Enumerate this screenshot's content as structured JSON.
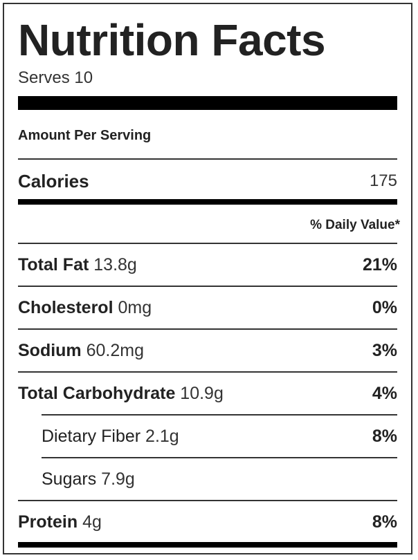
{
  "title": "Nutrition Facts",
  "serves": "Serves 10",
  "amount_per_serving": "Amount Per Serving",
  "calories": {
    "label": "Calories",
    "value": "175"
  },
  "daily_value_header": "% Daily Value*",
  "nutrients": [
    {
      "name": "Total Fat",
      "amount": "13.8g",
      "dv": "21%"
    },
    {
      "name": "Cholesterol",
      "amount": "0mg",
      "dv": "0%"
    },
    {
      "name": "Sodium",
      "amount": "60.2mg",
      "dv": "3%"
    },
    {
      "name": "Total Carbohydrate",
      "amount": "10.9g",
      "dv": "4%"
    },
    {
      "name": "Dietary Fiber",
      "amount": "2.1g",
      "dv": "8%",
      "indented": true
    },
    {
      "name": "Sugars",
      "amount": "7.9g",
      "dv": "",
      "indented": true
    },
    {
      "name": "Protein",
      "amount": "4g",
      "dv": "8%"
    }
  ]
}
